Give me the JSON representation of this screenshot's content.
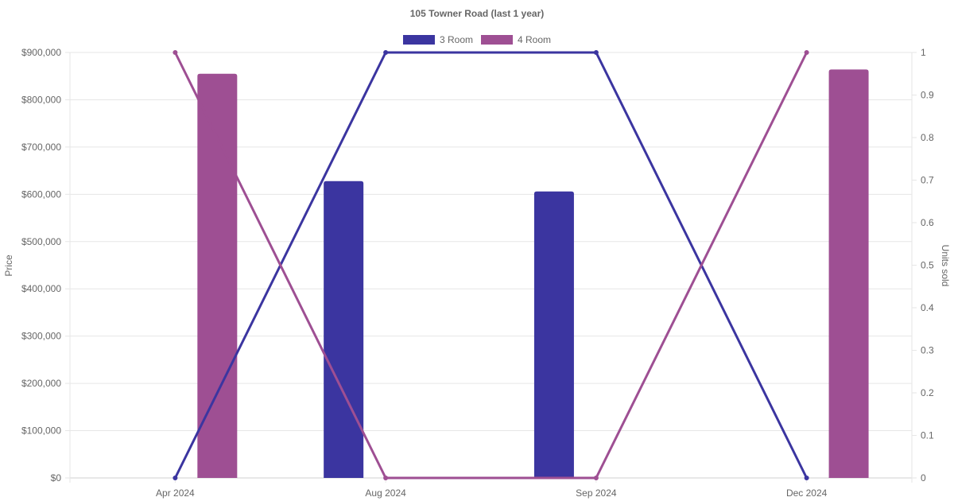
{
  "chart_data": {
    "type": "bar",
    "title": "105 Towner Road (last 1 year)",
    "categories": [
      "Apr 2024",
      "Aug 2024",
      "Sep 2024",
      "Dec 2024"
    ],
    "y_left": {
      "label": "Price",
      "min": 0,
      "max": 900000,
      "ticks": [
        0,
        100000,
        200000,
        300000,
        400000,
        500000,
        600000,
        700000,
        800000,
        900000
      ],
      "tick_labels": [
        "$0",
        "$100,000",
        "$200,000",
        "$300,000",
        "$400,000",
        "$500,000",
        "$600,000",
        "$700,000",
        "$800,000",
        "$900,000"
      ]
    },
    "y_right": {
      "label": "Units sold",
      "min": 0,
      "max": 1,
      "ticks": [
        0,
        0.1,
        0.2,
        0.3,
        0.4,
        0.5,
        0.6,
        0.7,
        0.8,
        0.9,
        1
      ],
      "tick_labels": [
        "0",
        "0.1",
        "0.2",
        "0.3",
        "0.4",
        "0.5",
        "0.6",
        "0.7",
        "0.8",
        "0.9",
        "1"
      ]
    },
    "series": [
      {
        "name": "3 Room",
        "color": "#3b35a0",
        "price": [
          null,
          628000,
          606000,
          null
        ],
        "units_sold": [
          0,
          1,
          1,
          0
        ]
      },
      {
        "name": "4 Room",
        "color": "#9e4f93",
        "price": [
          855000,
          null,
          null,
          864000
        ],
        "units_sold": [
          1,
          0,
          0,
          1
        ]
      }
    ],
    "grid": true,
    "legend_position": "top-center"
  }
}
